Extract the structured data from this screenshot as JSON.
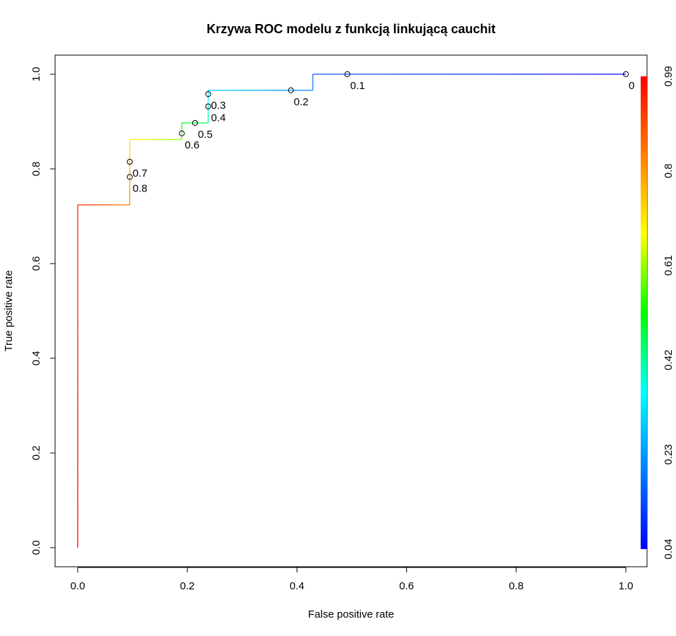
{
  "chart_data": {
    "type": "line",
    "title": "Krzywa ROC modelu z funkcją linkującą cauchit",
    "xlabel": "False positive rate",
    "ylabel": "True positive rate",
    "xlim": [
      0,
      1
    ],
    "ylim": [
      0,
      1
    ],
    "x_ticks": [
      "0.0",
      "0.2",
      "0.4",
      "0.6",
      "0.8",
      "1.0"
    ],
    "y_ticks": [
      "0.0",
      "0.2",
      "0.4",
      "0.6",
      "0.8",
      "1.0"
    ],
    "grid": false,
    "curve": [
      {
        "fpr": 0.0,
        "tpr": 0.0,
        "cutoff": 0.99
      },
      {
        "fpr": 0.0,
        "tpr": 0.724,
        "cutoff": 0.95
      },
      {
        "fpr": 0.095,
        "tpr": 0.724,
        "cutoff": 0.83
      },
      {
        "fpr": 0.095,
        "tpr": 0.862,
        "cutoff": 0.7
      },
      {
        "fpr": 0.19,
        "tpr": 0.862,
        "cutoff": 0.6
      },
      {
        "fpr": 0.19,
        "tpr": 0.897,
        "cutoff": 0.5
      },
      {
        "fpr": 0.238,
        "tpr": 0.897,
        "cutoff": 0.45
      },
      {
        "fpr": 0.238,
        "tpr": 0.966,
        "cutoff": 0.3
      },
      {
        "fpr": 0.429,
        "tpr": 0.966,
        "cutoff": 0.2
      },
      {
        "fpr": 0.429,
        "tpr": 1.0,
        "cutoff": 0.15
      },
      {
        "fpr": 1.0,
        "tpr": 1.0,
        "cutoff": 0.04
      }
    ],
    "cutoff_points": [
      {
        "label": "0",
        "fpr": 1.0,
        "tpr": 1.0
      },
      {
        "label": "0.1",
        "fpr": 0.492,
        "tpr": 1.0
      },
      {
        "label": "0.2",
        "fpr": 0.389,
        "tpr": 0.966
      },
      {
        "label": "0.3",
        "fpr": 0.238,
        "tpr": 0.958
      },
      {
        "label": "0.4",
        "fpr": 0.238,
        "tpr": 0.932
      },
      {
        "label": "0.5",
        "fpr": 0.214,
        "tpr": 0.897
      },
      {
        "label": "0.6",
        "fpr": 0.19,
        "tpr": 0.875
      },
      {
        "label": "0.7",
        "fpr": 0.095,
        "tpr": 0.815
      },
      {
        "label": "0.8",
        "fpr": 0.095,
        "tpr": 0.783
      }
    ],
    "colorbar": {
      "ticks": [
        "0.04",
        "0.23",
        "0.42",
        "0.61",
        "0.8",
        "0.99"
      ],
      "tick_values": [
        0.04,
        0.23,
        0.42,
        0.61,
        0.8,
        0.99
      ],
      "range": [
        0.04,
        0.99
      ],
      "colors": [
        "#0000ff",
        "#0080ff",
        "#00ffff",
        "#00ff00",
        "#ffff00",
        "#ff8000",
        "#ff0000"
      ]
    }
  }
}
